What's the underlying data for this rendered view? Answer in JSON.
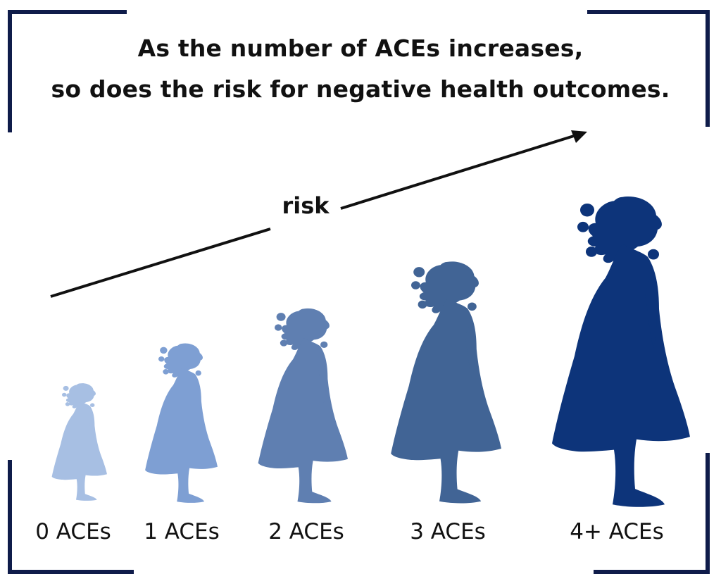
{
  "headline": {
    "line1": "As the number of ACEs increases,",
    "line2": "so does the risk for negative health outcomes."
  },
  "risk_label": "risk",
  "figures": [
    {
      "label": "0 ACEs",
      "color": "#a7bfe3"
    },
    {
      "label": "1 ACEs",
      "color": "#7e9fd3"
    },
    {
      "label": "2 ACEs",
      "color": "#5f7fb1"
    },
    {
      "label": "3 ACEs",
      "color": "#416495"
    },
    {
      "label": "4+ ACEs",
      "color": "#0d347a"
    }
  ],
  "colors": {
    "frame": "#0f1c4a",
    "arrow": "#111111",
    "text": "#111111"
  },
  "icons": [
    "girl-silhouette-icon",
    "arrow-icon"
  ]
}
